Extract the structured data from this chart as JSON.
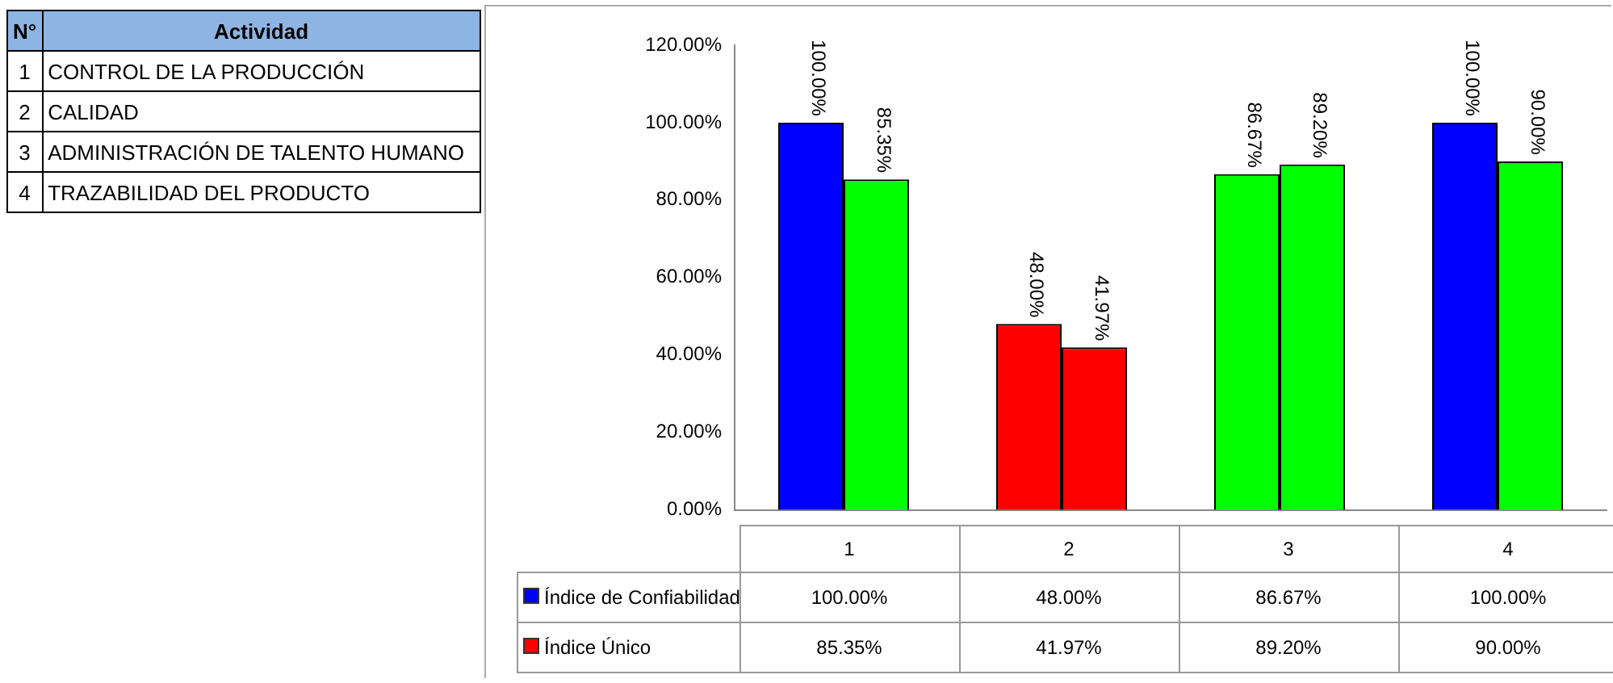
{
  "chart_data": {
    "type": "bar",
    "categories": [
      "1",
      "2",
      "3",
      "4"
    ],
    "series": [
      {
        "name": "Índice de Confiabilidad",
        "color": "#0000ff",
        "colors": [
          "#0000ff",
          "#ff0000",
          "#00ff00",
          "#0000ff"
        ],
        "values": [
          100,
          48,
          86.67,
          100
        ],
        "value_labels": [
          "100.00%",
          "48.00%",
          "86.67%",
          "100.00%"
        ]
      },
      {
        "name": "Índice Único",
        "color": "#ff0000",
        "colors": [
          "#00ff00",
          "#ff0000",
          "#00ff00",
          "#00ff00"
        ],
        "values": [
          85.35,
          41.97,
          89.2,
          90
        ],
        "value_labels": [
          "85.35%",
          "41.97%",
          "89.20%",
          "90.00%"
        ]
      }
    ],
    "ylim": [
      0,
      120
    ],
    "yticks": [
      {
        "value": 0,
        "label": "0.00%"
      },
      {
        "value": 20,
        "label": "20.00%"
      },
      {
        "value": 40,
        "label": "40.00%"
      },
      {
        "value": 60,
        "label": "60.00%"
      },
      {
        "value": 80,
        "label": "80.00%"
      },
      {
        "value": 100,
        "label": "100.00%"
      },
      {
        "value": 120,
        "label": "120.00%"
      }
    ],
    "legend": "bottom",
    "grid": false,
    "annotations": [
      "N°",
      "Actividad",
      "CONTROL DE LA PRODUCCIÓN",
      "CALIDAD",
      "ADMINISTRACIÓN DE TALENTO HUMANO",
      "TRAZABILIDAD DEL PRODUCTO"
    ]
  }
}
